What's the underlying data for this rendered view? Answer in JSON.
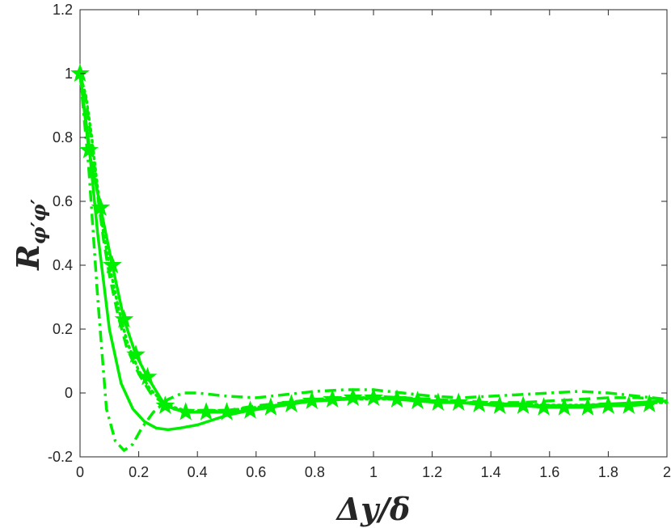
{
  "chart_data": {
    "type": "line",
    "xlabel": "Δy/δ",
    "ylabel": {
      "main": "R",
      "sub": "φ′φ′"
    },
    "xlim": [
      0,
      2
    ],
    "ylim": [
      -0.2,
      1.2
    ],
    "xticks": [
      0,
      0.2,
      0.4,
      0.6,
      0.8,
      1,
      1.2,
      1.4,
      1.6,
      1.8,
      2
    ],
    "yticks": [
      -0.2,
      0,
      0.2,
      0.4,
      0.6,
      0.8,
      1,
      1.2
    ],
    "xtick_labels": [
      "0",
      "0.2",
      "0.4",
      "0.6",
      "0.8",
      "1",
      "1.2",
      "1.4",
      "1.6",
      "1.8",
      "2"
    ],
    "ytick_labels": [
      "-0.2",
      "0",
      "0.2",
      "0.4",
      "0.6",
      "0.8",
      "1",
      "1.2"
    ],
    "grid": false,
    "color": "#00ee00",
    "series": [
      {
        "style": "solid",
        "x": [
          0,
          0.03,
          0.06,
          0.1,
          0.14,
          0.18,
          0.22,
          0.26,
          0.3,
          0.34,
          0.4,
          0.5,
          0.6,
          0.7,
          0.8,
          0.9,
          1.0,
          1.1,
          1.2,
          1.3,
          1.4,
          1.5,
          1.6,
          1.7,
          1.8,
          1.9,
          2.0
        ],
        "y": [
          1.0,
          0.78,
          0.5,
          0.2,
          0.03,
          -0.05,
          -0.09,
          -0.11,
          -0.115,
          -0.11,
          -0.1,
          -0.07,
          -0.05,
          -0.035,
          -0.025,
          -0.02,
          -0.015,
          -0.02,
          -0.025,
          -0.03,
          -0.035,
          -0.04,
          -0.04,
          -0.04,
          -0.035,
          -0.03,
          -0.025
        ]
      },
      {
        "style": "dashdot",
        "x": [
          0,
          0.03,
          0.06,
          0.09,
          0.12,
          0.15,
          0.18,
          0.21,
          0.25,
          0.3,
          0.35,
          0.4,
          0.5,
          0.6,
          0.7,
          0.8,
          0.9,
          1.0,
          1.1,
          1.2,
          1.3,
          1.4,
          1.5,
          1.6,
          1.7,
          1.8,
          1.9,
          2.0
        ],
        "y": [
          1.0,
          0.7,
          0.3,
          -0.05,
          -0.15,
          -0.18,
          -0.16,
          -0.11,
          -0.06,
          -0.02,
          0.0,
          0.0,
          -0.01,
          -0.015,
          -0.005,
          0.005,
          0.01,
          0.01,
          0.0,
          -0.01,
          -0.015,
          -0.01,
          -0.005,
          0.0,
          0.005,
          0.0,
          -0.01,
          -0.02
        ]
      },
      {
        "style": "dashed",
        "x": [
          0,
          0.02,
          0.04,
          0.06,
          0.08,
          0.1,
          0.13,
          0.16,
          0.2,
          0.24,
          0.28,
          0.32,
          0.36,
          0.4,
          0.5,
          0.6,
          0.7,
          0.8,
          0.9,
          1.0,
          1.1,
          1.2,
          1.3,
          1.4,
          1.5,
          1.6,
          1.7,
          1.8,
          1.9,
          2.0
        ],
        "y": [
          1.0,
          0.92,
          0.78,
          0.62,
          0.48,
          0.37,
          0.24,
          0.14,
          0.06,
          0.0,
          -0.03,
          -0.05,
          -0.06,
          -0.06,
          -0.055,
          -0.04,
          -0.03,
          -0.02,
          -0.015,
          -0.01,
          -0.015,
          -0.02,
          -0.025,
          -0.03,
          -0.03,
          -0.025,
          -0.02,
          -0.015,
          -0.015,
          -0.02
        ]
      },
      {
        "style": "dotted",
        "x": [
          0,
          0.02,
          0.04,
          0.06,
          0.08,
          0.1,
          0.13,
          0.16,
          0.2,
          0.24,
          0.28,
          0.32,
          0.36,
          0.4,
          0.5,
          0.6,
          0.7,
          0.8,
          0.9,
          1.0,
          1.1,
          1.2,
          1.3,
          1.4,
          1.5,
          1.6,
          1.7,
          1.8,
          1.9,
          2.0
        ],
        "y": [
          1.0,
          0.93,
          0.8,
          0.64,
          0.5,
          0.4,
          0.27,
          0.16,
          0.07,
          0.01,
          -0.025,
          -0.045,
          -0.055,
          -0.058,
          -0.055,
          -0.045,
          -0.035,
          -0.025,
          -0.02,
          -0.018,
          -0.02,
          -0.025,
          -0.03,
          -0.032,
          -0.035,
          -0.038,
          -0.038,
          -0.035,
          -0.032,
          -0.03
        ]
      },
      {
        "style": "star",
        "x": [
          0.0,
          0.03,
          0.07,
          0.11,
          0.15,
          0.19,
          0.23,
          0.29,
          0.36,
          0.43,
          0.5,
          0.58,
          0.65,
          0.72,
          0.79,
          0.86,
          0.93,
          1.0,
          1.08,
          1.15,
          1.22,
          1.29,
          1.36,
          1.43,
          1.51,
          1.58,
          1.65,
          1.73,
          1.8,
          1.87,
          1.94
        ],
        "y": [
          1.0,
          0.76,
          0.58,
          0.4,
          0.23,
          0.12,
          0.05,
          -0.04,
          -0.06,
          -0.06,
          -0.06,
          -0.055,
          -0.045,
          -0.035,
          -0.025,
          -0.02,
          -0.015,
          -0.015,
          -0.02,
          -0.025,
          -0.03,
          -0.03,
          -0.035,
          -0.04,
          -0.04,
          -0.045,
          -0.045,
          -0.045,
          -0.04,
          -0.04,
          -0.035
        ]
      }
    ]
  }
}
